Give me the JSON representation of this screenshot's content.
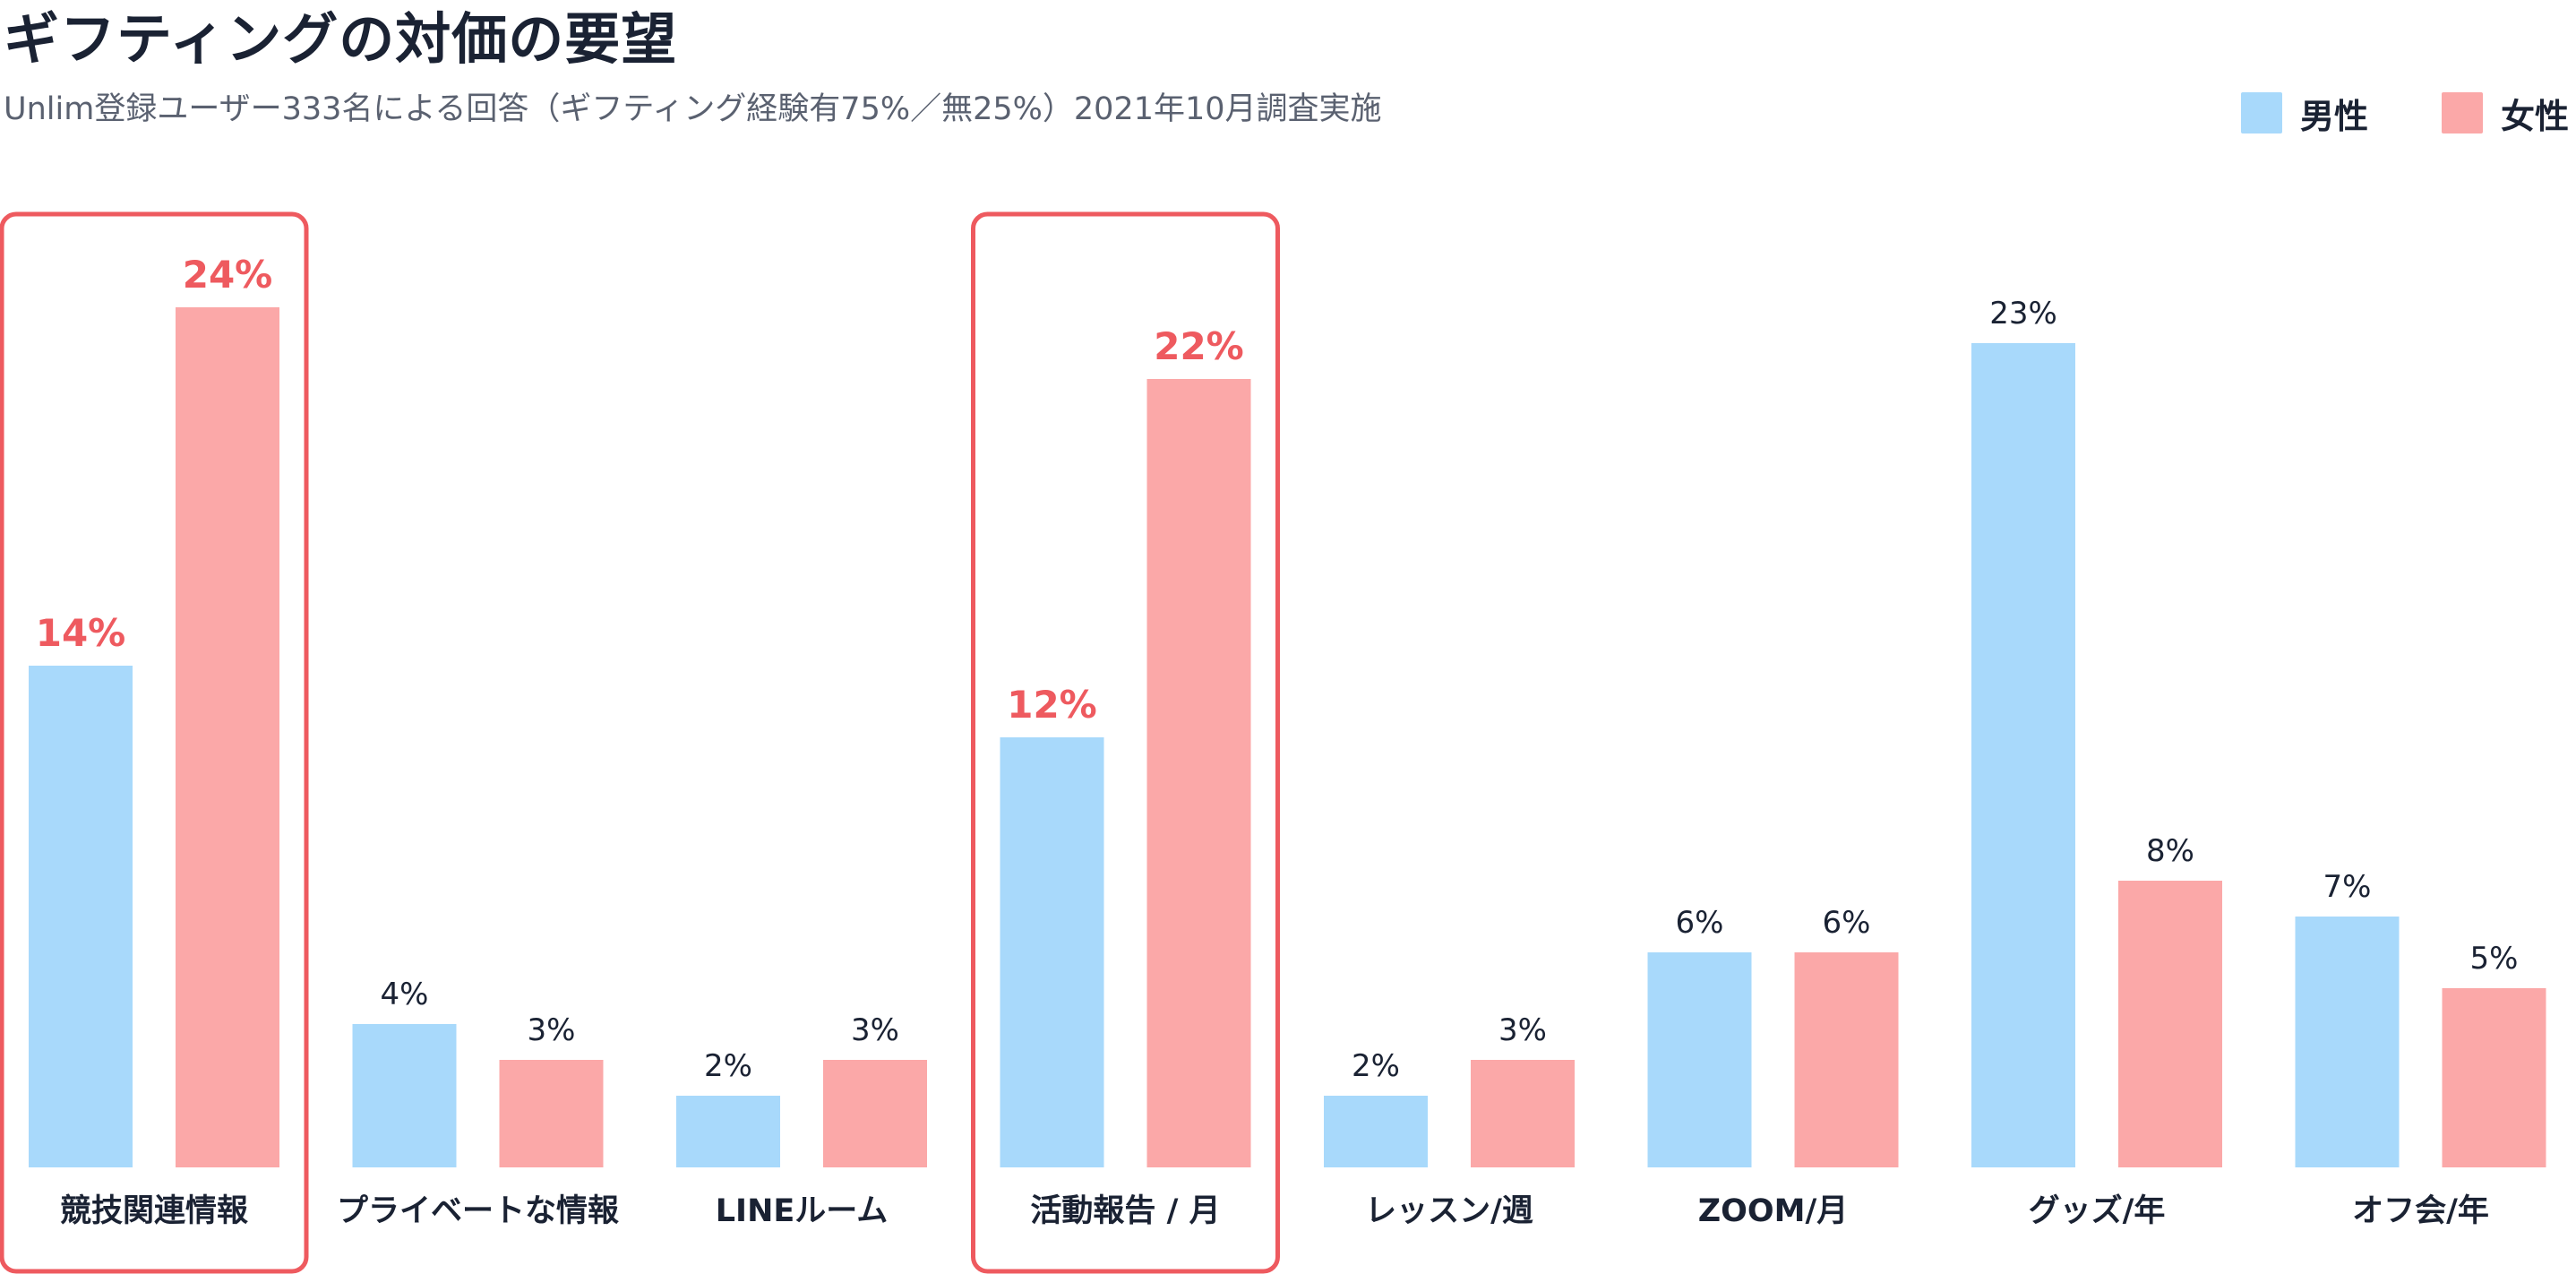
{
  "chart_data": {
    "type": "bar",
    "title": "ギフティングの対価の要望",
    "subtitle": "Unlim登録ユーザー333名による回答（ギフティング経験有75%／無25%）2021年10月調査実施",
    "categories": [
      "競技関連情報",
      "プライベートな情報",
      "LINEルーム",
      "活動報告 / 月",
      "レッスン/週",
      "ZOOM/月",
      "グッズ/年",
      "オフ会/年"
    ],
    "series": [
      {
        "name": "男性",
        "color": "#a8d9fb",
        "values": [
          14,
          4,
          2,
          12,
          2,
          6,
          23,
          7
        ],
        "labels": [
          "14%",
          "4%",
          "2%",
          "12%",
          "2%",
          "6%",
          "23%",
          "7%"
        ]
      },
      {
        "name": "女性",
        "color": "#fba8a8",
        "values": [
          24,
          3,
          3,
          22,
          3,
          6,
          8,
          5
        ],
        "labels": [
          "24%",
          "3%",
          "3%",
          "22%",
          "3%",
          "6%",
          "8%",
          "5%"
        ]
      }
    ],
    "unit": "%",
    "ylim": [
      0,
      24
    ],
    "highlighted_categories": [
      0,
      3
    ],
    "highlight_color": "#ee5a5f",
    "label_color": "#1a2233",
    "grid": false,
    "legend_position": "top-right"
  }
}
